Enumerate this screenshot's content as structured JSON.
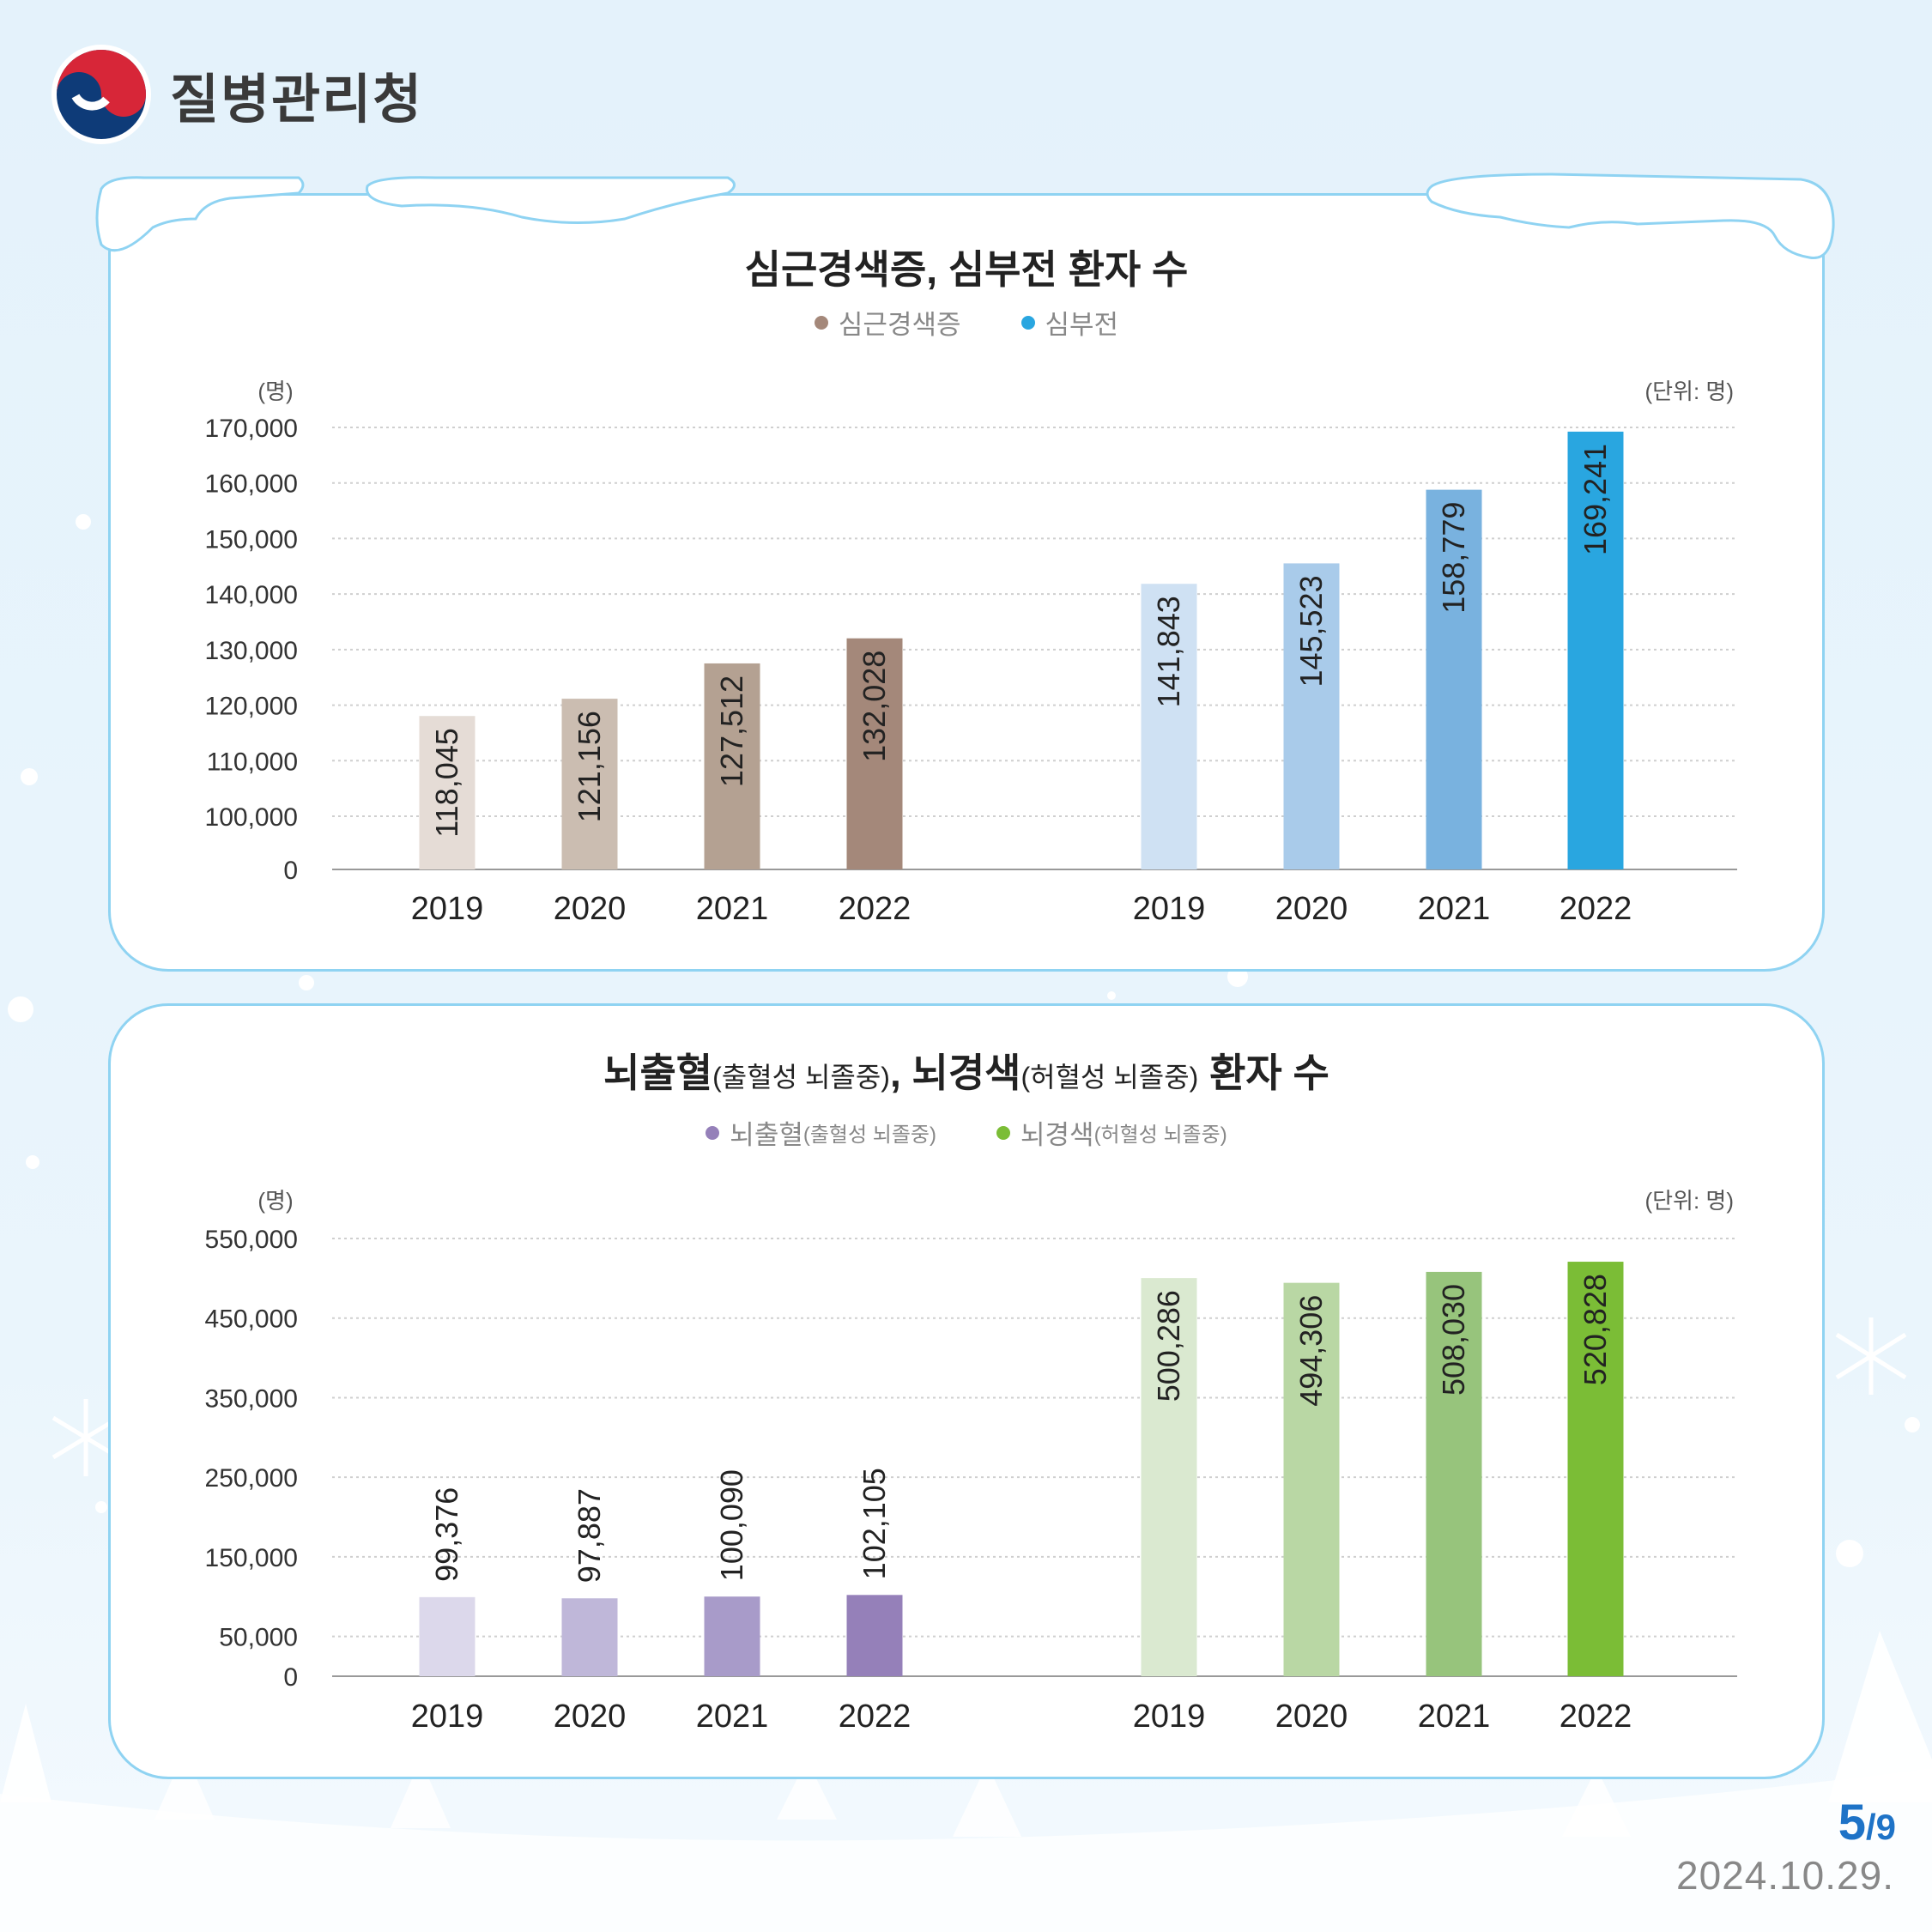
{
  "header": {
    "org_name": "질병관리청"
  },
  "page": {
    "current": "5",
    "total": "/9",
    "date": "2024.10.29."
  },
  "colors": {
    "accent": "#1e73c7",
    "card_border": "#8fd3f2"
  },
  "chart_data": [
    {
      "type": "bar",
      "title": "심근경색증, 심부전 환자 수",
      "ylabel": "(명)",
      "unit_note": "(단위: 명)",
      "ylim": [
        0,
        170000
      ],
      "axis_break": true,
      "yticks": [
        0,
        100000,
        110000,
        120000,
        130000,
        140000,
        150000,
        160000,
        170000
      ],
      "ytick_labels": [
        "0",
        "100,000",
        "110,000",
        "120,000",
        "130,000",
        "140,000",
        "150,000",
        "160,000",
        "170,000"
      ],
      "groups": [
        {
          "name": "심근경색증",
          "legend_color": "#a4887a",
          "categories": [
            "2019",
            "2020",
            "2021",
            "2022"
          ],
          "values": [
            118045,
            121156,
            127512,
            132028
          ],
          "labels": [
            "118,045",
            "121,156",
            "127,512",
            "132,028"
          ],
          "colors": [
            "#e5dcd6",
            "#cbbdb1",
            "#b4a192",
            "#a4887a"
          ]
        },
        {
          "name": "심부전",
          "legend_color": "#29a6e0",
          "categories": [
            "2019",
            "2020",
            "2021",
            "2022"
          ],
          "values": [
            141843,
            145523,
            158779,
            169241
          ],
          "labels": [
            "141,843",
            "145,523",
            "158,779",
            "169,241"
          ],
          "colors": [
            "#cfe1f3",
            "#a9cbea",
            "#79b2df",
            "#29a6e0"
          ]
        }
      ]
    },
    {
      "type": "bar",
      "title": "뇌출혈(출혈성 뇌졸중), 뇌경색(허혈성 뇌졸중) 환자 수",
      "title_parts": [
        {
          "text": "뇌출혈",
          "small": false
        },
        {
          "text": "(출혈성 뇌졸중)",
          "small": true
        },
        {
          "text": ", 뇌경색",
          "small": false
        },
        {
          "text": "(허혈성 뇌졸중)",
          "small": true
        },
        {
          "text": " 환자 수",
          "small": false
        }
      ],
      "ylabel": "(명)",
      "unit_note": "(단위: 명)",
      "ylim": [
        0,
        550000
      ],
      "yticks": [
        0,
        50000,
        150000,
        250000,
        350000,
        450000,
        550000
      ],
      "ytick_labels": [
        "0",
        "50,000",
        "150,000",
        "250,000",
        "350,000",
        "450,000",
        "550,000"
      ],
      "groups": [
        {
          "name": "뇌출혈",
          "name_note": "(출혈성 뇌졸중)",
          "legend_color": "#9580b9",
          "categories": [
            "2019",
            "2020",
            "2021",
            "2022"
          ],
          "values": [
            99376,
            97887,
            100090,
            102105
          ],
          "labels": [
            "99,376",
            "97,887",
            "100,090",
            "102,105"
          ],
          "colors": [
            "#dcd8eb",
            "#bfb7d9",
            "#a89bc9",
            "#9580b9"
          ]
        },
        {
          "name": "뇌경색",
          "name_note": "(허혈성 뇌졸중)",
          "legend_color": "#7bbd36",
          "categories": [
            "2019",
            "2020",
            "2021",
            "2022"
          ],
          "values": [
            500286,
            494306,
            508030,
            520828
          ],
          "labels": [
            "500,286",
            "494,306",
            "508,030",
            "520,828"
          ],
          "colors": [
            "#dae9d0",
            "#b9d7a4",
            "#97c47c",
            "#7bbd36"
          ]
        }
      ]
    }
  ]
}
